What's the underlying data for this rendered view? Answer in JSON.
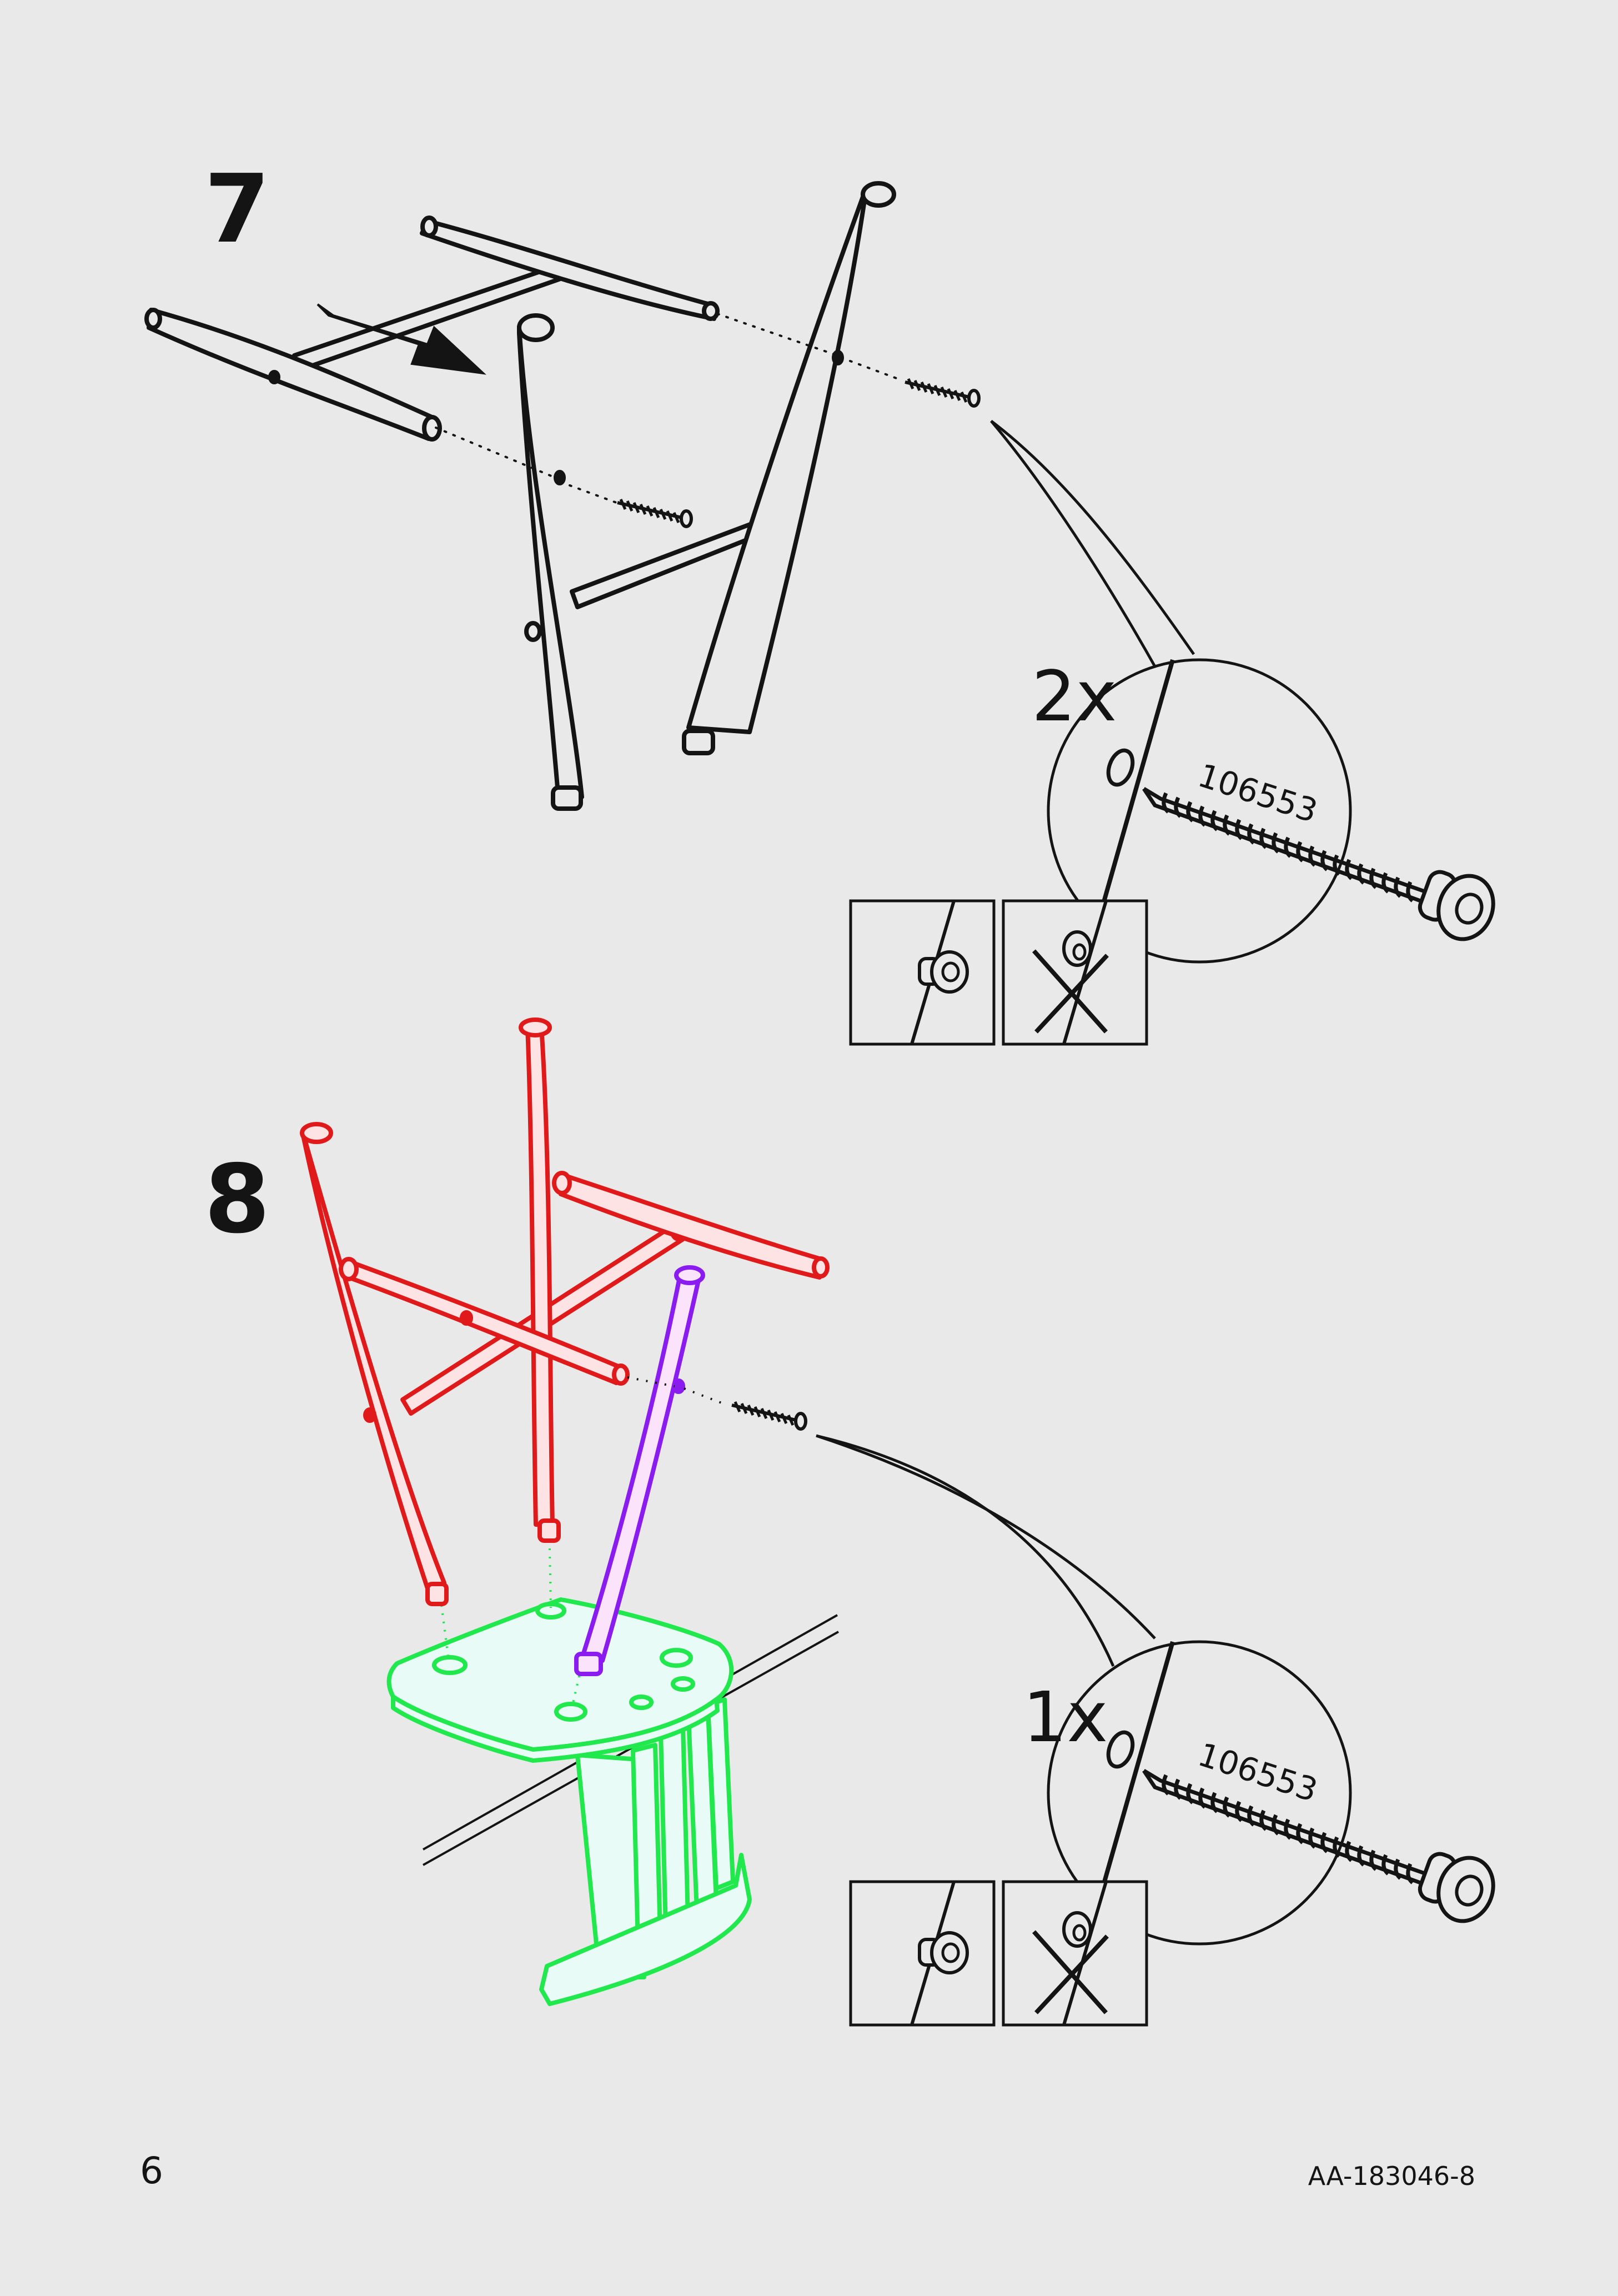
{
  "steps": [
    {
      "number": "7",
      "callout": {
        "quantity": "2x",
        "part_number": "106553"
      },
      "icons": [
        "arrow-icon",
        "screw-icon",
        "correct-check-icon",
        "wrong-cross-icon"
      ]
    },
    {
      "number": "8",
      "callout": {
        "quantity": "1x",
        "part_number": "106553"
      },
      "icons": [
        "screw-icon",
        "correct-check-icon",
        "wrong-cross-icon"
      ]
    }
  ],
  "colors": {
    "line": "#141414",
    "highlight_red": "#e01a1a",
    "highlight_red_fill": "#fde3e3",
    "highlight_purple": "#8a1cf0",
    "highlight_purple_fill": "#fbe3fb",
    "highlight_green": "#21e84d",
    "highlight_green_fill": "#e9fbf7"
  },
  "footer": {
    "page_number": "6",
    "document_id": "AA-183046-8"
  }
}
